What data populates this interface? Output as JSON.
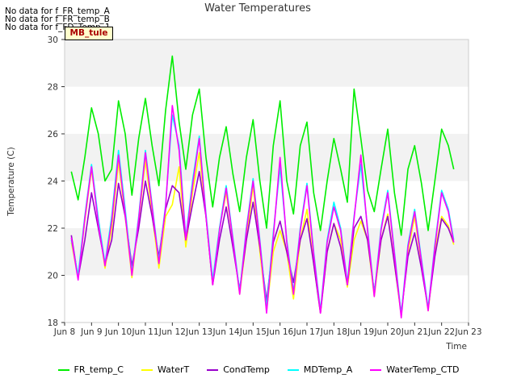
{
  "no_data_messages": [
    "No data for f_FR_temp_A",
    "No data for f_FR_temp_B",
    "No data for f_FD_Temp_1"
  ],
  "site_tag": "MB_tule",
  "chart_data": {
    "type": "line",
    "title": "Water Temperatures",
    "xlabel": "Time",
    "ylabel": "Temperature (C)",
    "xlim": [
      8,
      23
    ],
    "ylim": [
      18,
      30
    ],
    "xticks": [
      8,
      9,
      10,
      11,
      12,
      13,
      14,
      15,
      16,
      17,
      18,
      19,
      20,
      21,
      22,
      23
    ],
    "xtick_labels": [
      "Jun 8",
      "Jun 9",
      "Jun 10",
      "Jun 11",
      "Jun 12",
      "Jun 13",
      "Jun 14",
      "Jun 15",
      "Jun 16",
      "Jun 17",
      "Jun 18",
      "Jun 19",
      "Jun 20",
      "Jun 21",
      "Jun 22",
      "Jun 23"
    ],
    "yticks": [
      18,
      20,
      22,
      24,
      26,
      28,
      30
    ],
    "background_bands": [
      [
        20,
        22
      ],
      [
        24,
        26
      ],
      [
        28,
        30
      ]
    ],
    "legend_position": "bottom",
    "series": [
      {
        "name": "FR_temp_C",
        "color": "#00ee00",
        "x": [
          8.25,
          8.5,
          8.75,
          9.0,
          9.25,
          9.5,
          9.75,
          10.0,
          10.25,
          10.5,
          10.75,
          11.0,
          11.25,
          11.5,
          11.75,
          12.0,
          12.25,
          12.5,
          12.75,
          13.0,
          13.25,
          13.5,
          13.75,
          14.0,
          14.25,
          14.5,
          14.75,
          15.0,
          15.25,
          15.5,
          15.75,
          16.0,
          16.25,
          16.5,
          16.75,
          17.0,
          17.25,
          17.5,
          17.75,
          18.0,
          18.25,
          18.5,
          18.75,
          19.0,
          19.25,
          19.5,
          19.75,
          20.0,
          20.25,
          20.5,
          20.75,
          21.0,
          21.25,
          21.5,
          21.75,
          22.0,
          22.25,
          22.45
        ],
        "y": [
          24.4,
          23.2,
          25.0,
          27.1,
          26.0,
          24.0,
          24.5,
          27.4,
          26.0,
          23.4,
          25.8,
          27.5,
          25.5,
          23.8,
          27.0,
          29.3,
          26.5,
          24.5,
          26.8,
          27.9,
          25.0,
          22.9,
          25.0,
          26.3,
          24.3,
          22.7,
          25.0,
          26.6,
          24.0,
          22.0,
          25.5,
          27.4,
          24.0,
          22.6,
          25.5,
          26.5,
          23.5,
          21.9,
          24.0,
          25.8,
          24.5,
          23.1,
          27.9,
          25.8,
          23.6,
          22.7,
          24.5,
          26.2,
          23.5,
          21.7,
          24.5,
          25.5,
          23.9,
          21.9,
          24.0,
          26.2,
          25.5,
          24.5
        ]
      },
      {
        "name": "WaterT",
        "color": "#ffff00",
        "x": [
          8.25,
          8.5,
          8.75,
          9.0,
          9.25,
          9.5,
          9.75,
          10.0,
          10.25,
          10.5,
          10.75,
          11.0,
          11.25,
          11.5,
          11.75,
          12.0,
          12.25,
          12.5,
          12.75,
          13.0,
          13.25,
          13.5,
          13.75,
          14.0,
          14.25,
          14.5,
          14.75,
          15.0,
          15.25,
          15.5,
          15.75,
          16.0,
          16.25,
          16.5,
          16.75,
          17.0,
          17.25,
          17.5,
          17.75,
          18.0,
          18.25,
          18.5,
          18.75,
          19.0,
          19.25,
          19.5,
          19.75,
          20.0,
          20.25,
          20.5,
          20.75,
          21.0,
          21.25,
          21.5,
          21.75,
          22.0,
          22.25,
          22.45
        ],
        "y": [
          21.4,
          19.9,
          22.3,
          24.5,
          22.3,
          20.3,
          22.0,
          24.8,
          22.5,
          19.9,
          22.3,
          24.9,
          22.6,
          20.3,
          22.5,
          23.0,
          24.6,
          21.2,
          23.5,
          25.2,
          22.5,
          19.6,
          22.0,
          23.5,
          21.5,
          19.2,
          21.5,
          23.8,
          21.0,
          18.5,
          21.0,
          21.9,
          21.0,
          19.0,
          21.5,
          22.8,
          20.5,
          18.4,
          21.0,
          22.2,
          21.5,
          19.5,
          21.5,
          22.3,
          21.5,
          19.1,
          21.5,
          22.6,
          20.5,
          18.3,
          21.0,
          22.5,
          20.5,
          18.5,
          21.0,
          22.5,
          22.1,
          21.3
        ]
      },
      {
        "name": "CondTemp",
        "color": "#9900cc",
        "x": [
          8.25,
          8.5,
          8.75,
          9.0,
          9.25,
          9.5,
          9.75,
          10.0,
          10.25,
          10.5,
          10.75,
          11.0,
          11.25,
          11.5,
          11.75,
          12.0,
          12.25,
          12.5,
          12.75,
          13.0,
          13.25,
          13.5,
          13.75,
          14.0,
          14.25,
          14.5,
          14.75,
          15.0,
          15.25,
          15.5,
          15.75,
          16.0,
          16.25,
          16.5,
          16.75,
          17.0,
          17.25,
          17.5,
          17.75,
          18.0,
          18.25,
          18.5,
          18.75,
          19.0,
          19.25,
          19.5,
          19.75,
          20.0,
          20.25,
          20.5,
          20.75,
          21.0,
          21.25,
          21.5,
          21.75,
          22.0,
          22.25,
          22.45
        ],
        "y": [
          21.7,
          19.9,
          21.5,
          23.5,
          22.0,
          20.5,
          21.5,
          23.9,
          22.5,
          20.4,
          22.0,
          24.0,
          22.5,
          20.8,
          22.8,
          23.8,
          23.5,
          21.5,
          23.0,
          24.4,
          22.5,
          19.6,
          21.5,
          22.9,
          21.2,
          19.4,
          21.5,
          23.1,
          21.2,
          18.9,
          21.4,
          22.3,
          21.0,
          19.7,
          21.5,
          22.4,
          20.5,
          18.4,
          21.0,
          22.2,
          21.2,
          19.6,
          22.0,
          22.5,
          21.5,
          19.3,
          21.5,
          22.5,
          20.5,
          18.4,
          20.8,
          21.8,
          20.3,
          18.6,
          20.8,
          22.4,
          22.0,
          21.4
        ]
      },
      {
        "name": "MDTemp_A",
        "color": "#00ffff",
        "x": [
          8.25,
          8.5,
          8.75,
          9.0,
          9.25,
          9.5,
          9.75,
          10.0,
          10.25,
          10.5,
          10.75,
          11.0,
          11.25,
          11.5,
          11.75,
          12.0,
          12.25,
          12.5,
          12.75,
          13.0,
          13.25,
          13.5,
          13.75,
          14.0,
          14.25,
          14.5,
          14.75,
          15.0,
          15.25,
          15.5,
          15.75,
          16.0,
          16.25,
          16.5,
          16.75,
          17.0,
          17.25,
          17.5,
          17.75,
          18.0,
          18.25,
          18.5,
          18.75,
          19.0,
          19.25,
          19.5,
          19.75,
          20.0,
          20.25,
          20.5,
          20.75,
          21.0,
          21.25,
          21.5,
          21.75,
          22.0,
          22.25,
          22.45
        ],
        "y": [
          21.5,
          20.0,
          22.5,
          24.7,
          22.4,
          20.5,
          22.5,
          25.3,
          22.8,
          20.1,
          22.5,
          25.3,
          23.0,
          20.6,
          23.0,
          26.8,
          25.5,
          21.6,
          24.0,
          25.9,
          22.6,
          19.8,
          22.0,
          23.8,
          21.6,
          19.3,
          22.0,
          24.1,
          21.5,
          18.6,
          21.8,
          24.6,
          21.5,
          19.3,
          22.0,
          23.9,
          21.0,
          18.5,
          21.5,
          23.1,
          22.0,
          19.7,
          22.5,
          24.7,
          22.0,
          19.2,
          22.0,
          23.6,
          21.0,
          18.3,
          21.3,
          22.8,
          20.7,
          18.6,
          21.3,
          23.6,
          22.8,
          21.5
        ]
      },
      {
        "name": "WaterTemp_CTD",
        "color": "#ff00ff",
        "x": [
          8.25,
          8.5,
          8.75,
          9.0,
          9.25,
          9.5,
          9.75,
          10.0,
          10.25,
          10.5,
          10.75,
          11.0,
          11.25,
          11.5,
          11.75,
          12.0,
          12.25,
          12.5,
          12.75,
          13.0,
          13.25,
          13.5,
          13.75,
          14.0,
          14.25,
          14.5,
          14.75,
          15.0,
          15.25,
          15.5,
          15.75,
          16.0,
          16.25,
          16.5,
          16.75,
          17.0,
          17.25,
          17.5,
          17.75,
          18.0,
          18.25,
          18.5,
          18.75,
          19.0,
          19.25,
          19.5,
          19.75,
          20.0,
          20.25,
          20.5,
          20.75,
          21.0,
          21.25,
          21.5,
          21.75,
          22.0,
          22.25,
          22.45
        ],
        "y": [
          21.6,
          19.8,
          22.4,
          24.6,
          22.2,
          20.4,
          22.3,
          25.1,
          22.6,
          20.0,
          22.4,
          25.2,
          22.9,
          20.5,
          22.9,
          27.2,
          25.3,
          21.5,
          23.8,
          25.8,
          22.5,
          19.6,
          21.9,
          23.7,
          21.5,
          19.2,
          21.9,
          24.0,
          21.4,
          18.4,
          21.6,
          25.0,
          21.4,
          19.2,
          21.9,
          23.8,
          20.9,
          18.4,
          21.4,
          22.9,
          21.9,
          19.6,
          22.4,
          25.1,
          21.9,
          19.1,
          21.9,
          23.5,
          20.9,
          18.2,
          21.2,
          22.7,
          20.6,
          18.5,
          21.2,
          23.5,
          22.7,
          21.4
        ]
      }
    ]
  }
}
